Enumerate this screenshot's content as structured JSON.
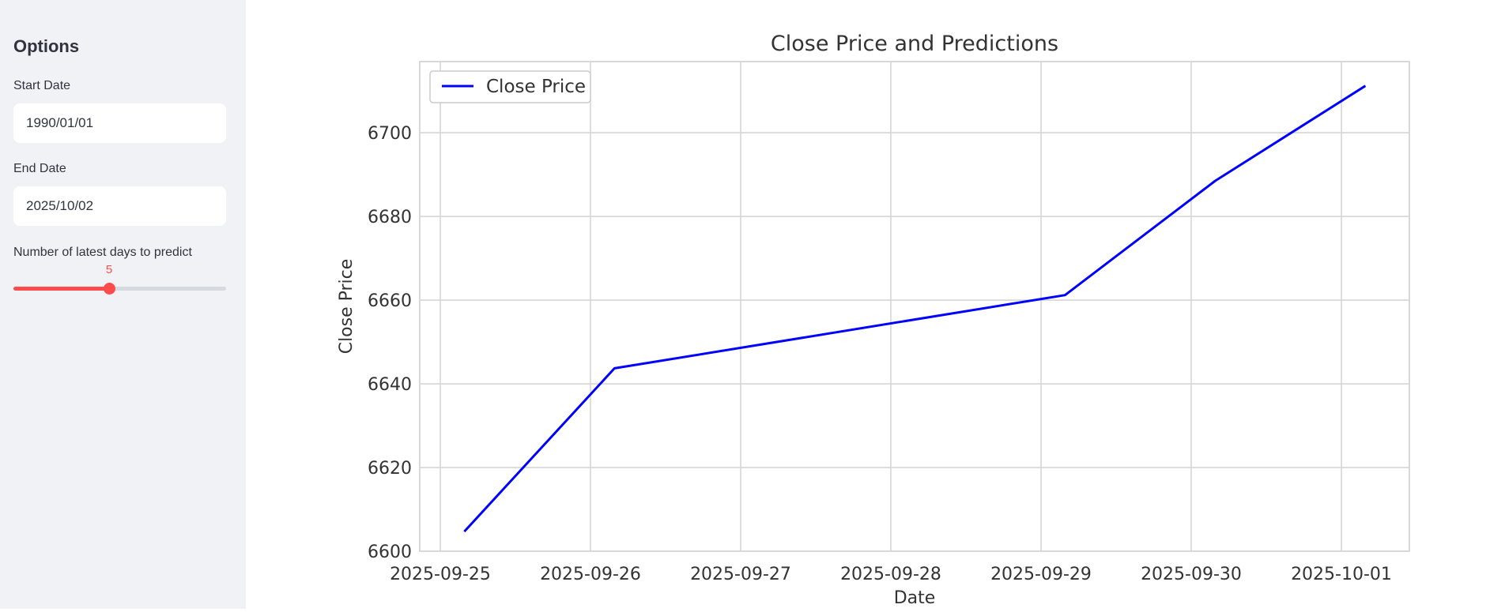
{
  "sidebar": {
    "title": "Options",
    "start_date_label": "Start Date",
    "start_date_value": "1990/01/01",
    "end_date_label": "End Date",
    "end_date_value": "2025/10/02",
    "days_label": "Number of latest days to predict",
    "days_value": "5",
    "days_slider": {
      "value": 5,
      "fraction": 0.45
    },
    "accent_color": "#ff4b4b"
  },
  "chart_data": {
    "type": "line",
    "title": "Close Price and Predictions",
    "xlabel": "Date",
    "ylabel": "Close Price",
    "x": [
      "2025-09-25",
      "2025-09-26",
      "2025-09-29",
      "2025-09-30",
      "2025-10-01"
    ],
    "x_ticks": [
      "2025-09-25",
      "2025-09-26",
      "2025-09-27",
      "2025-09-28",
      "2025-09-29",
      "2025-09-30",
      "2025-10-01"
    ],
    "y_ticks": [
      6600,
      6620,
      6640,
      6660,
      6680,
      6700
    ],
    "ylim": [
      6600,
      6717
    ],
    "xlim": [
      "2025-09-25",
      "2025-10-01"
    ],
    "grid": true,
    "legend_position": "top-left",
    "series": [
      {
        "name": "Close Price",
        "color": "#0000ff",
        "points": [
          [
            "2025-09-25",
            6604.7
          ],
          [
            "2025-09-26",
            6643.7
          ],
          [
            "2025-09-29",
            6661.2
          ],
          [
            "2025-09-30",
            6688.5
          ],
          [
            "2025-10-01",
            6711.2
          ]
        ]
      }
    ]
  }
}
